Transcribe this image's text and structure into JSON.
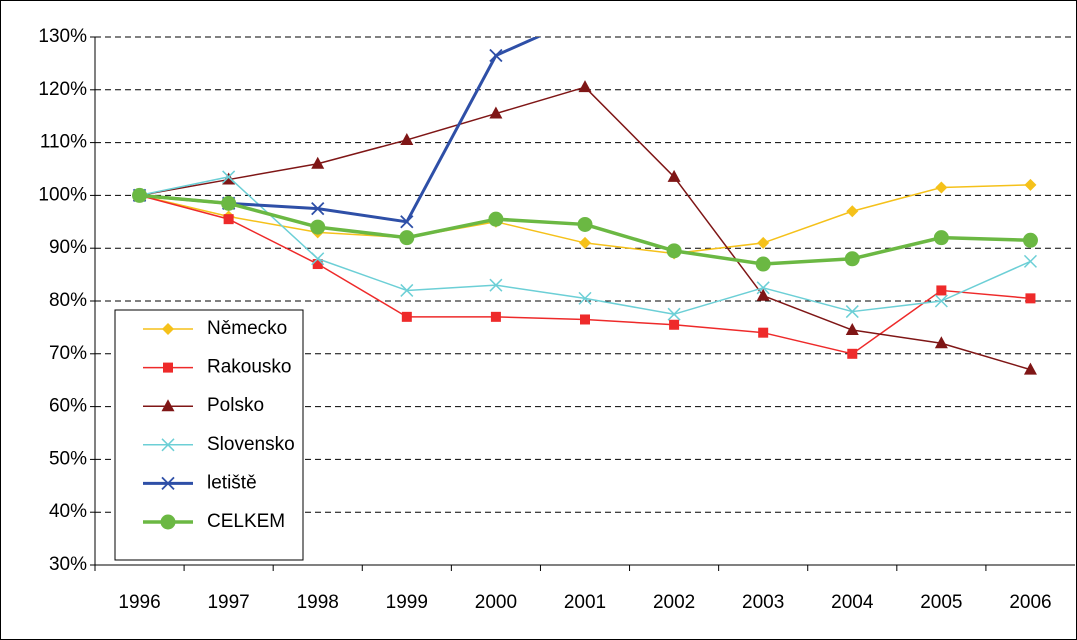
{
  "chart_data": {
    "type": "line",
    "categories": [
      "1996",
      "1997",
      "1998",
      "1999",
      "2000",
      "2001",
      "2002",
      "2003",
      "2004",
      "2005",
      "2006"
    ],
    "ylim": [
      30,
      130
    ],
    "yticks": [
      {
        "value": 30,
        "label": "30%"
      },
      {
        "value": 40,
        "label": "40%"
      },
      {
        "value": 50,
        "label": "50%"
      },
      {
        "value": 60,
        "label": "60%"
      },
      {
        "value": 70,
        "label": "70%"
      },
      {
        "value": 80,
        "label": "80%"
      },
      {
        "value": 90,
        "label": "90%"
      },
      {
        "value": 100,
        "label": "100%"
      },
      {
        "value": 110,
        "label": "110%"
      },
      {
        "value": 120,
        "label": "120%"
      },
      {
        "value": 130,
        "label": "130%"
      }
    ],
    "grid": true,
    "legend": "lower left",
    "series": [
      {
        "name": "Německo",
        "color": "#f5c11a",
        "marker": "diamond",
        "width": 1.5,
        "values": [
          100,
          96,
          93,
          92,
          95,
          91,
          89,
          91,
          97,
          101.5,
          102
        ]
      },
      {
        "name": "Rakousko",
        "color": "#ee2a2a",
        "marker": "square",
        "width": 1.5,
        "values": [
          100,
          95.5,
          87,
          77,
          77,
          76.5,
          75.5,
          74,
          70,
          82,
          80.5
        ]
      },
      {
        "name": "Polsko",
        "color": "#7f1616",
        "marker": "triangle",
        "width": 1.5,
        "values": [
          100,
          103,
          106,
          110.5,
          115.5,
          120.5,
          103.5,
          81,
          74.5,
          72,
          67
        ]
      },
      {
        "name": "Slovensko",
        "color": "#6ccfd6",
        "marker": "x",
        "width": 1.5,
        "values": [
          100,
          103.5,
          88,
          82,
          83,
          80.5,
          77.5,
          82.5,
          78,
          80,
          87.5
        ]
      },
      {
        "name": "letiště",
        "color": "#2e4fa7",
        "marker": "x",
        "width": 3,
        "values": [
          100,
          98.5,
          97.5,
          95,
          126.5,
          134,
          null,
          null,
          null,
          null,
          null
        ]
      },
      {
        "name": "CELKEM",
        "color": "#6bb843",
        "marker": "circle",
        "width": 3.5,
        "values": [
          100,
          98.5,
          94,
          92,
          95.5,
          94.5,
          89.5,
          87,
          88,
          92,
          91.5
        ]
      }
    ]
  }
}
